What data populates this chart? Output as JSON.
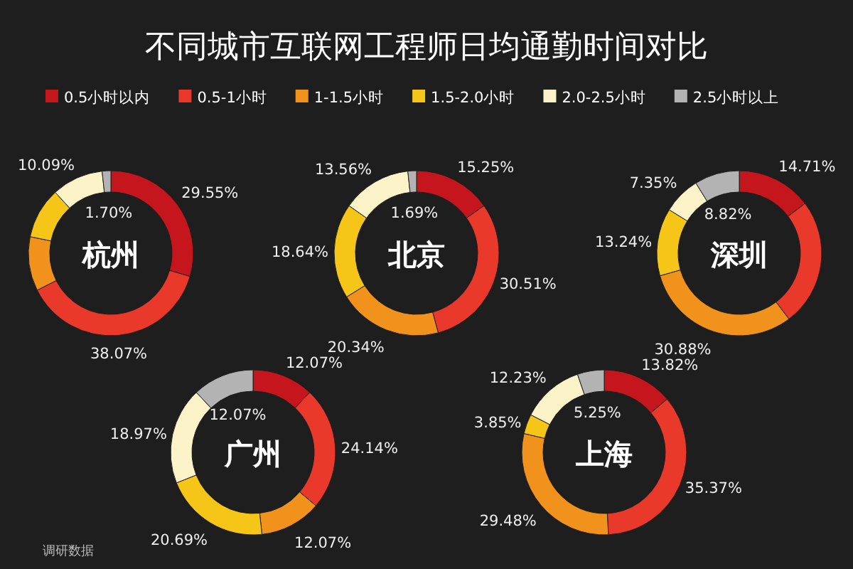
{
  "chart_data": [
    {
      "type": "other",
      "title": "不同城市互联网工程师日均通勤时间对比",
      "annotations": [
        "调研数据"
      ]
    },
    {
      "type": "donut",
      "title": "杭州",
      "legend": "top",
      "categories": [
        "0.5小时以内",
        "0.5-1小时",
        "1-1.5小时",
        "1.5-2.0小时",
        "2.0-2.5小时",
        "2.5小时以上"
      ],
      "values": [
        29.55,
        38.07,
        10.6,
        10.0,
        10.09,
        1.7
      ],
      "value_labels": [
        "29.55%",
        "38.07%",
        null,
        null,
        "10.09%",
        "1.70%"
      ],
      "colors": [
        "#c4161c",
        "#e8392a",
        "#f0921c",
        "#f5c518",
        "#fdf3c8",
        "#b3b3b3"
      ]
    },
    {
      "type": "donut",
      "title": "北京",
      "categories": [
        null,
        null,
        null,
        null,
        null,
        null
      ],
      "values": [
        15.25,
        30.51,
        20.34,
        18.64,
        13.56,
        1.69
      ],
      "value_labels": [
        "15.25%",
        "30.51%",
        "20.34%",
        "18.64%",
        "13.56%",
        "1.69%"
      ],
      "colors": [
        "#c4161c",
        "#e8392a",
        "#f0921c",
        "#f5c518",
        "#fdf3c8",
        "#b3b3b3"
      ]
    },
    {
      "type": "donut",
      "title": "深圳",
      "categories": [
        null,
        null,
        null,
        null,
        null,
        null
      ],
      "values": [
        14.71,
        25.0,
        30.88,
        13.24,
        7.35,
        8.82
      ],
      "value_labels": [
        "14.71%",
        null,
        "30.88%",
        "13.24%",
        "7.35%",
        "8.82%"
      ],
      "colors": [
        "#c4161c",
        "#e8392a",
        "#f0921c",
        "#f5c518",
        "#fdf3c8",
        "#b3b3b3"
      ]
    },
    {
      "type": "donut",
      "title": "广州",
      "categories": [
        null,
        null,
        null,
        null,
        null,
        null
      ],
      "values": [
        12.07,
        24.14,
        12.07,
        20.69,
        18.97,
        12.07
      ],
      "value_labels": [
        "12.07%",
        "24.14%",
        "12.07%",
        "20.69%",
        "18.97%",
        "12.07%"
      ],
      "colors": [
        "#c4161c",
        "#e8392a",
        "#f0921c",
        "#f5c518",
        "#fdf3c8",
        "#b3b3b3"
      ]
    },
    {
      "type": "donut",
      "title": "上海",
      "categories": [
        null,
        null,
        null,
        null,
        null,
        null
      ],
      "values": [
        13.82,
        35.37,
        29.48,
        3.85,
        12.23,
        5.25
      ],
      "value_labels": [
        "13.82%",
        "35.37%",
        "29.48%",
        "3.85%",
        "12.23%",
        "5.25%"
      ],
      "colors": [
        "#c4161c",
        "#e8392a",
        "#f0921c",
        "#f5c518",
        "#fdf3c8",
        "#b3b3b3"
      ]
    }
  ]
}
